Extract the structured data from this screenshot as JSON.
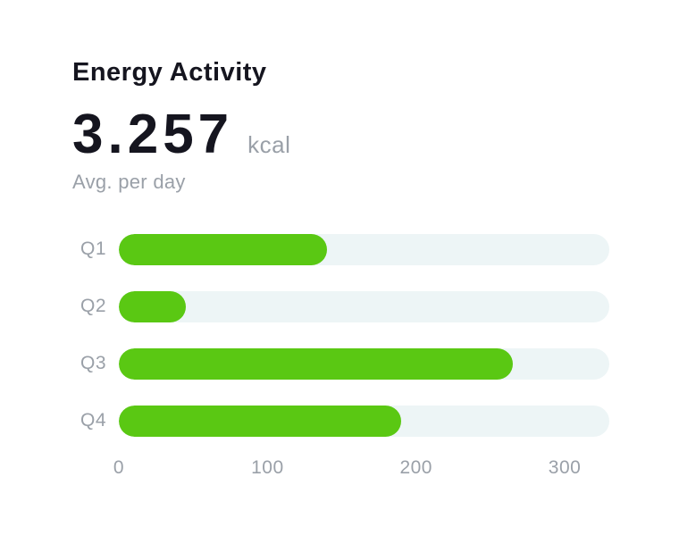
{
  "header": {
    "title": "Energy Activity",
    "value": "3.257",
    "unit": "kcal",
    "subtitle": "Avg. per day"
  },
  "colors": {
    "title_text": "#15151F",
    "muted_text": "#9AA0A8",
    "bar_fill": "#5AC813",
    "bar_track": "#EDF5F6",
    "background": "#FFFFFF"
  },
  "chart_data": {
    "type": "bar",
    "orientation": "horizontal",
    "title": "Energy Activity",
    "unit": "kcal",
    "categories": [
      "Q1",
      "Q2",
      "Q3",
      "Q4"
    ],
    "values": [
      140,
      45,
      265,
      190
    ],
    "xlim": [
      0,
      330
    ],
    "xticks": [
      0,
      100,
      200,
      300
    ],
    "grid": false,
    "legend": false,
    "bar_style": "rounded-pill"
  }
}
